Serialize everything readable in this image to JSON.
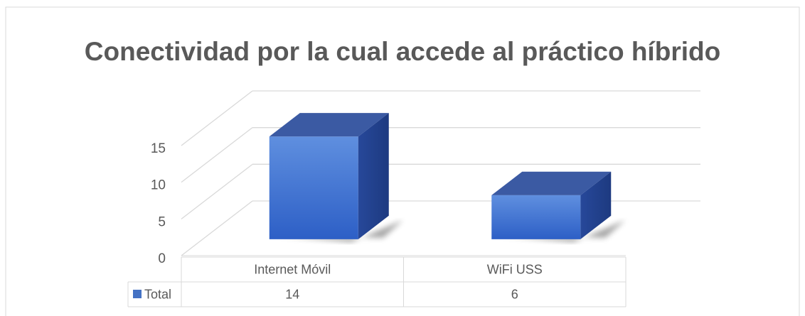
{
  "chart_data": {
    "type": "bar3d",
    "title": "Conectividad por la cual accede al práctico híbrido",
    "categories": [
      "Internet Móvil",
      "WiFi USS"
    ],
    "series": [
      {
        "name": "Total",
        "color": "#4472c4",
        "values": [
          14,
          6
        ]
      }
    ],
    "ylim": [
      0,
      15
    ],
    "yticks": [
      0,
      5,
      10,
      15
    ],
    "grid": true,
    "data_table": true
  }
}
